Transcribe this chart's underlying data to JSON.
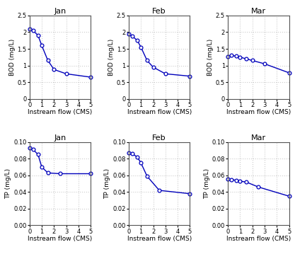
{
  "bod_x": {
    "Jan": [
      0.0,
      0.3,
      0.7,
      1.0,
      1.5,
      2.0,
      3.0,
      5.0
    ],
    "Feb": [
      0.0,
      0.3,
      0.7,
      1.0,
      1.5,
      2.0,
      3.0,
      5.0
    ],
    "Mar": [
      0.0,
      0.3,
      0.7,
      1.0,
      1.5,
      2.0,
      3.0,
      5.0
    ]
  },
  "bod_y": {
    "Jan": [
      2.1,
      2.05,
      1.9,
      1.6,
      1.15,
      0.88,
      0.75,
      0.65
    ],
    "Feb": [
      1.95,
      1.88,
      1.75,
      1.55,
      1.15,
      0.95,
      0.75,
      0.68
    ],
    "Mar": [
      1.27,
      1.3,
      1.28,
      1.25,
      1.2,
      1.15,
      1.05,
      0.78
    ]
  },
  "tp_x": {
    "Jan": [
      0.0,
      0.3,
      0.7,
      1.0,
      1.5,
      2.5,
      5.0
    ],
    "Feb": [
      0.0,
      0.3,
      0.7,
      1.0,
      1.5,
      2.5,
      5.0
    ],
    "Mar": [
      0.0,
      0.3,
      0.7,
      1.0,
      1.5,
      2.5,
      5.0
    ]
  },
  "tp_y": {
    "Jan": [
      0.093,
      0.091,
      0.085,
      0.07,
      0.063,
      0.062,
      0.062
    ],
    "Feb": [
      0.087,
      0.086,
      0.082,
      0.075,
      0.059,
      0.042,
      0.038
    ],
    "Mar": [
      0.056,
      0.055,
      0.054,
      0.053,
      0.052,
      0.046,
      0.035
    ]
  },
  "months": [
    "Jan",
    "Feb",
    "Mar"
  ],
  "line_color": "#0000BB",
  "marker": "o",
  "marker_facecolor": "white",
  "marker_edgecolor": "#0000BB",
  "marker_size": 3.5,
  "marker_linewidth": 0.9,
  "linewidth": 1.0,
  "bod_ylim": [
    0,
    2.5
  ],
  "bod_yticks": [
    0,
    0.5,
    1.0,
    1.5,
    2.0,
    2.5
  ],
  "tp_ylim": [
    0,
    0.1
  ],
  "tp_yticks": [
    0,
    0.02,
    0.04,
    0.06,
    0.08,
    0.1
  ],
  "xlim": [
    0,
    5
  ],
  "xticks": [
    0,
    1,
    2,
    3,
    4,
    5
  ],
  "xlabel": "Instream flow (CMS)",
  "bod_ylabel": "BOD (mg/L)",
  "tp_ylabel": "TP (mg/L)",
  "grid_color": "#CCCCCC",
  "grid_style": "dotted",
  "title_fontsize": 8,
  "label_fontsize": 6.5,
  "tick_fontsize": 6,
  "bg_color": "#F0F0F0"
}
